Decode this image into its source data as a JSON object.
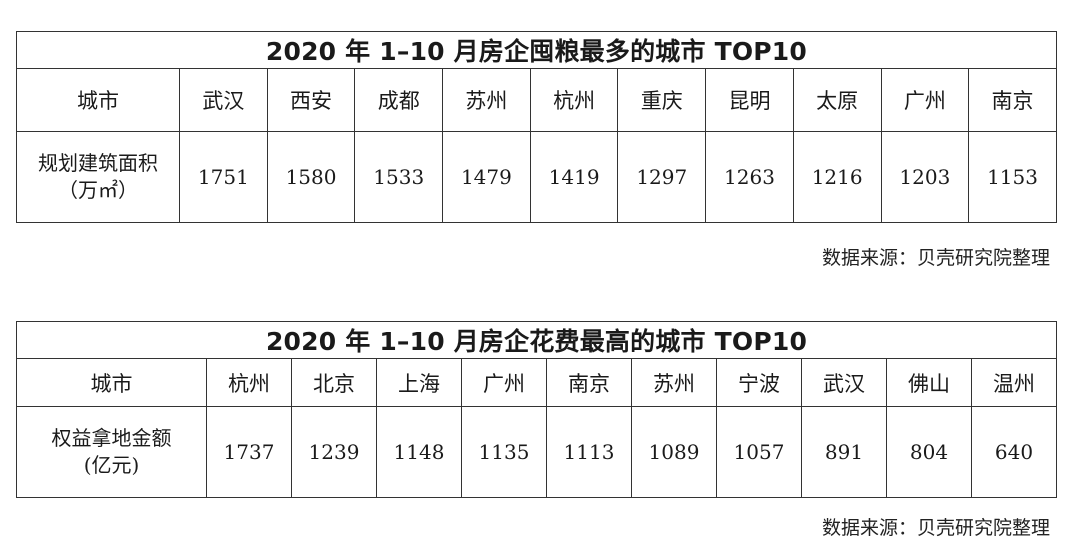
{
  "table1": {
    "title": "2020 年 1–10 月房企囤粮最多的城市 TOP10",
    "header_label": "城市",
    "row_label_line1": "规划建筑面积",
    "row_label_line2": "（万㎡）",
    "cities": [
      "武汉",
      "西安",
      "成都",
      "苏州",
      "杭州",
      "重庆",
      "昆明",
      "太原",
      "广州",
      "南京"
    ],
    "values": [
      "1751",
      "1580",
      "1533",
      "1479",
      "1419",
      "1297",
      "1263",
      "1216",
      "1203",
      "1153"
    ],
    "source": "数据来源：贝壳研究院整理"
  },
  "table2": {
    "title": "2020 年 1–10 月房企花费最高的城市 TOP10",
    "header_label": "城市",
    "row_label_line1": "权益拿地金额",
    "row_label_line2": "(亿元)",
    "cities": [
      "杭州",
      "北京",
      "上海",
      "广州",
      "南京",
      "苏州",
      "宁波",
      "武汉",
      "佛山",
      "温州"
    ],
    "values": [
      "1737",
      "1239",
      "1148",
      "1135",
      "1113",
      "1089",
      "1057",
      "891",
      "804",
      "640"
    ],
    "source": "数据来源：贝壳研究院整理"
  }
}
